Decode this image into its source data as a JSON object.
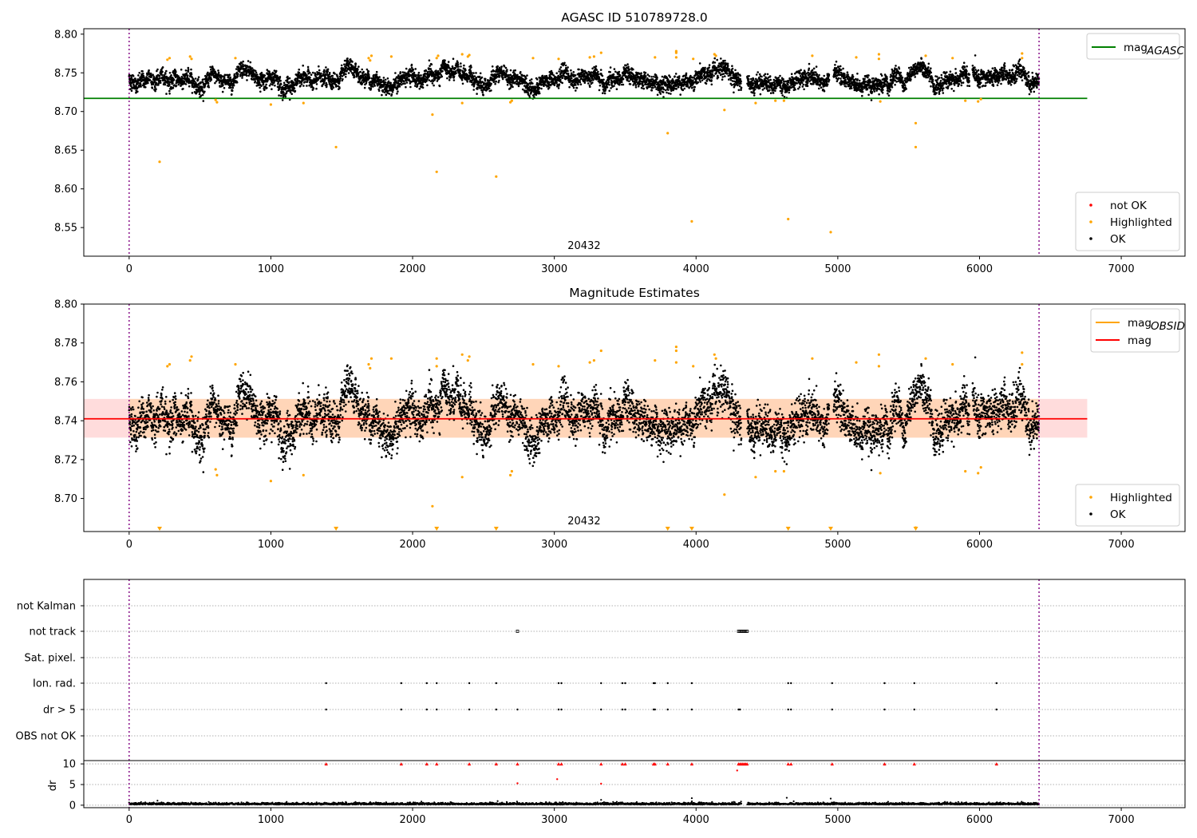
{
  "chart_data": [
    {
      "type": "scatter",
      "title": "AGASC ID 510789728.0",
      "xlim": [
        -320,
        7450
      ],
      "ylim": [
        8.513,
        8.807
      ],
      "x_ticks": [
        "0",
        "1000",
        "2000",
        "3000",
        "4000",
        "5000",
        "6000",
        "7000"
      ],
      "y_ticks": [
        "8.55",
        "8.60",
        "8.65",
        "8.70",
        "8.75",
        "8.80"
      ],
      "obsid_boundaries": [
        0,
        6420
      ],
      "annotation": "20432",
      "reference_lines": [
        {
          "name": "mag_AGASC",
          "value": 8.717,
          "x_range": [
            -320,
            6760
          ],
          "color": "#008000"
        }
      ],
      "legend_lines": [
        {
          "label": "mag",
          "sub": "AGASC",
          "color": "#008000"
        }
      ],
      "legend_markers": [
        {
          "label": "not OK",
          "color": "#ff0000"
        },
        {
          "label": "Highlighted",
          "color": "#ffa500"
        },
        {
          "label": "OK",
          "color": "#000000"
        }
      ],
      "series_ok": {
        "color": "#000000",
        "x_range": [
          0,
          6420
        ],
        "n_points": 6400,
        "center": 8.741,
        "spread": 0.009,
        "gaps": [
          [
            4320,
            4360
          ],
          [
            4940,
            4970
          ],
          [
            5930,
            5950
          ]
        ]
      },
      "series_highlighted": {
        "color": "#ffa500",
        "points": [
          [
            215,
            8.635
          ],
          [
            270,
            8.767
          ],
          [
            285,
            8.769
          ],
          [
            430,
            8.771
          ],
          [
            440,
            8.768
          ],
          [
            610,
            8.715
          ],
          [
            620,
            8.712
          ],
          [
            750,
            8.769
          ],
          [
            1000,
            8.709
          ],
          [
            1230,
            8.711
          ],
          [
            1460,
            8.654
          ],
          [
            1690,
            8.769
          ],
          [
            1700,
            8.766
          ],
          [
            1710,
            8.772
          ],
          [
            1850,
            8.771
          ],
          [
            2140,
            8.696
          ],
          [
            2170,
            8.622
          ],
          [
            2170,
            8.769
          ],
          [
            2180,
            8.772
          ],
          [
            2350,
            8.711
          ],
          [
            2350,
            8.774
          ],
          [
            2390,
            8.771
          ],
          [
            2400,
            8.773
          ],
          [
            2590,
            8.616
          ],
          [
            2690,
            8.712
          ],
          [
            2700,
            8.714
          ],
          [
            2850,
            8.769
          ],
          [
            3030,
            8.768
          ],
          [
            3250,
            8.77
          ],
          [
            3280,
            8.771
          ],
          [
            3330,
            8.776
          ],
          [
            3710,
            8.77
          ],
          [
            3800,
            8.672
          ],
          [
            3860,
            8.778
          ],
          [
            3860,
            8.776
          ],
          [
            3860,
            8.77
          ],
          [
            3970,
            8.558
          ],
          [
            3980,
            8.768
          ],
          [
            4130,
            8.774
          ],
          [
            4140,
            8.772
          ],
          [
            4200,
            8.702
          ],
          [
            4420,
            8.711
          ],
          [
            4560,
            8.714
          ],
          [
            4620,
            8.714
          ],
          [
            4650,
            8.561
          ],
          [
            4820,
            8.772
          ],
          [
            4950,
            8.544
          ],
          [
            5130,
            8.77
          ],
          [
            5290,
            8.774
          ],
          [
            5290,
            8.768
          ],
          [
            5300,
            8.713
          ],
          [
            5550,
            8.685
          ],
          [
            5550,
            8.654
          ],
          [
            5620,
            8.772
          ],
          [
            5810,
            8.769
          ],
          [
            5900,
            8.714
          ],
          [
            5990,
            8.713
          ],
          [
            6010,
            8.716
          ],
          [
            6300,
            8.775
          ],
          [
            6300,
            8.769
          ]
        ]
      },
      "series_not_ok": {
        "color": "#ff0000",
        "points": []
      }
    },
    {
      "type": "scatter",
      "title": "Magnitude Estimates",
      "xlim": [
        -320,
        7450
      ],
      "ylim": [
        8.683,
        8.8
      ],
      "x_ticks": [
        "0",
        "1000",
        "2000",
        "3000",
        "4000",
        "5000",
        "6000",
        "7000"
      ],
      "y_ticks": [
        "8.70",
        "8.72",
        "8.74",
        "8.76",
        "8.78",
        "8.80"
      ],
      "obsid_boundaries": [
        0,
        6420
      ],
      "annotation": "20432",
      "reference_lines": [
        {
          "name": "mag",
          "value": 8.741,
          "x_range": [
            -320,
            6760
          ],
          "color": "#ff0000"
        }
      ],
      "bands": [
        {
          "name": "mag",
          "range": [
            8.7313,
            8.7512
          ],
          "x_range": [
            -320,
            6760
          ],
          "color": "#ffc0c0"
        },
        {
          "name": "mag_OBSID",
          "range": [
            8.7313,
            8.7512
          ],
          "x_range": [
            0,
            6420
          ],
          "color": "#ffd0a0"
        }
      ],
      "legend_lines": [
        {
          "label": "mag",
          "sub": "OBSID",
          "color": "#ffa500"
        },
        {
          "label": "mag",
          "sub": "",
          "color": "#ff0000"
        }
      ],
      "legend_markers": [
        {
          "label": "Highlighted",
          "color": "#ffa500"
        },
        {
          "label": "OK",
          "color": "#000000"
        }
      ],
      "series_ok": {
        "color": "#000000",
        "x_range": [
          0,
          6420
        ],
        "n_points": 6400,
        "center": 8.741,
        "spread": 0.009,
        "gaps": [
          [
            4320,
            4360
          ],
          [
            4940,
            4970
          ],
          [
            5930,
            5950
          ]
        ]
      },
      "series_highlighted": {
        "color": "#ffa500",
        "points": [
          [
            270,
            8.768
          ],
          [
            285,
            8.769
          ],
          [
            430,
            8.771
          ],
          [
            440,
            8.773
          ],
          [
            610,
            8.715
          ],
          [
            620,
            8.712
          ],
          [
            750,
            8.769
          ],
          [
            1000,
            8.709
          ],
          [
            1230,
            8.712
          ],
          [
            1690,
            8.769
          ],
          [
            1700,
            8.767
          ],
          [
            1710,
            8.772
          ],
          [
            1850,
            8.772
          ],
          [
            2140,
            8.696
          ],
          [
            2170,
            8.772
          ],
          [
            2170,
            8.768
          ],
          [
            2350,
            8.711
          ],
          [
            2350,
            8.774
          ],
          [
            2390,
            8.771
          ],
          [
            2400,
            8.773
          ],
          [
            2690,
            8.712
          ],
          [
            2700,
            8.714
          ],
          [
            2850,
            8.769
          ],
          [
            3030,
            8.768
          ],
          [
            3250,
            8.77
          ],
          [
            3280,
            8.771
          ],
          [
            3330,
            8.776
          ],
          [
            3710,
            8.771
          ],
          [
            3860,
            8.778
          ],
          [
            3860,
            8.776
          ],
          [
            3860,
            8.77
          ],
          [
            3980,
            8.768
          ],
          [
            4130,
            8.774
          ],
          [
            4140,
            8.772
          ],
          [
            4200,
            8.702
          ],
          [
            4420,
            8.711
          ],
          [
            4560,
            8.714
          ],
          [
            4620,
            8.714
          ],
          [
            4820,
            8.772
          ],
          [
            5130,
            8.77
          ],
          [
            5290,
            8.774
          ],
          [
            5290,
            8.768
          ],
          [
            5300,
            8.713
          ],
          [
            5550,
            8.685
          ],
          [
            5620,
            8.772
          ],
          [
            5810,
            8.769
          ],
          [
            5900,
            8.714
          ],
          [
            5990,
            8.713
          ],
          [
            6010,
            8.716
          ],
          [
            6300,
            8.775
          ],
          [
            6300,
            8.769
          ]
        ]
      },
      "below_axis_markers": [
        215,
        1460,
        2170,
        2590,
        3800,
        3970,
        4650,
        4950,
        5550
      ]
    },
    {
      "type": "scatter",
      "title": "",
      "xlim": [
        -320,
        7450
      ],
      "x_ticks": [
        "0",
        "1000",
        "2000",
        "3000",
        "4000",
        "5000",
        "6000",
        "7000"
      ],
      "obsid_boundaries": [
        0,
        6420
      ],
      "flag_rows": [
        "not Kalman",
        "not track",
        "Sat. pixel.",
        "Ion. rad.",
        "dr > 5",
        "OBS not OK"
      ],
      "flags": {
        "not track": [
          2740,
          4300,
          4310,
          4320,
          4330,
          4340,
          4350,
          4360
        ],
        "Ion. rad.": [
          1390,
          1920,
          2100,
          2170,
          2400,
          2590,
          3030,
          3050,
          3330,
          3480,
          3500,
          3700,
          3710,
          3800,
          3970,
          4650,
          4670,
          4960,
          5330,
          5540,
          6120
        ],
        "dr > 5": [
          1390,
          1920,
          2100,
          2170,
          2400,
          2590,
          2740,
          3030,
          3050,
          3330,
          3480,
          3500,
          3700,
          3710,
          3800,
          3970,
          4300,
          4310,
          4650,
          4670,
          4960,
          5330,
          5540,
          6120
        ]
      },
      "dr": {
        "ylabel": "dr",
        "ylim": [
          -0.6,
          10.8
        ],
        "y_ticks": [
          "0",
          "5",
          "10"
        ],
        "n_points": 6400,
        "typical": 0.3,
        "capped_value": 10,
        "capped_x": [
          1390,
          1920,
          2100,
          2170,
          2400,
          2590,
          2740,
          3030,
          3050,
          3330,
          3480,
          3500,
          3700,
          3710,
          3800,
          3970,
          4300,
          4310,
          4320,
          4330,
          4340,
          4350,
          4360,
          4650,
          4670,
          4960,
          5330,
          5540,
          6120
        ],
        "mid_points": [
          [
            2740,
            5.3
          ],
          [
            3020,
            6.3
          ],
          [
            3330,
            5.2
          ],
          [
            4290,
            8.4
          ]
        ],
        "low_points": [
          [
            200,
            1.1
          ],
          [
            2600,
            1.0
          ],
          [
            3330,
            1.3
          ],
          [
            3970,
            1.7
          ],
          [
            4640,
            1.8
          ],
          [
            4950,
            1.6
          ]
        ]
      }
    }
  ]
}
